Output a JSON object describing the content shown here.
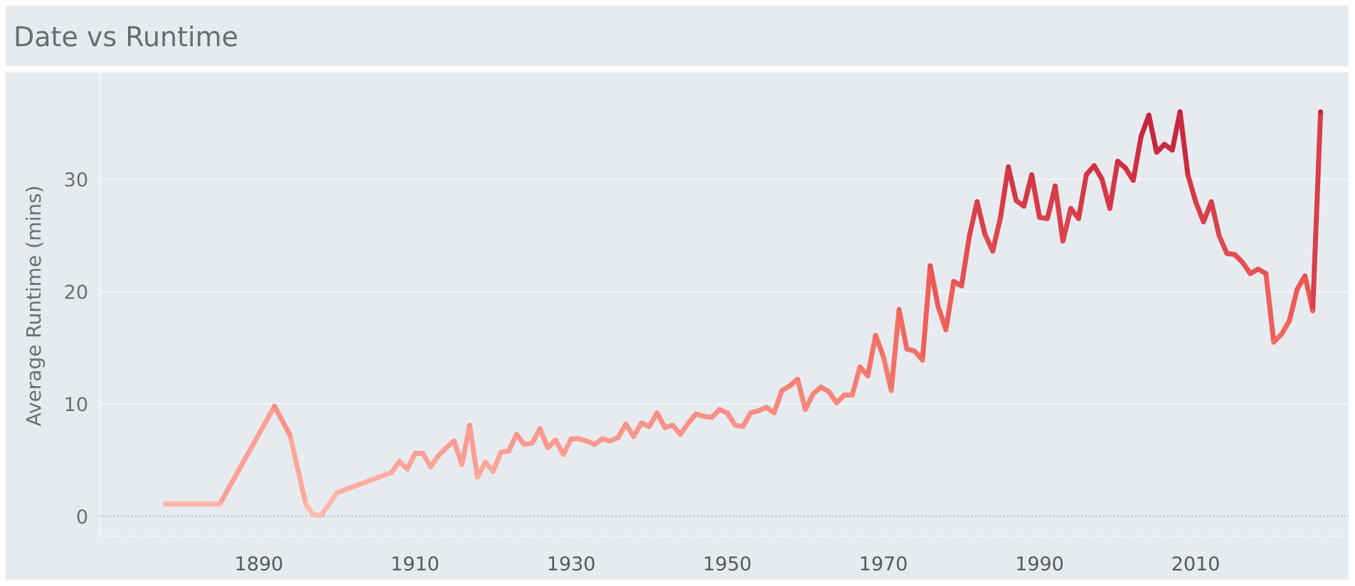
{
  "title": "Date vs Runtime",
  "chart_data": {
    "type": "line",
    "title": "Date vs Runtime",
    "xlabel": "",
    "ylabel": "Average Runtime (mins)",
    "xlim": [
      1870,
      2026
    ],
    "ylim": [
      -2,
      38
    ],
    "x_ticks": [
      1890,
      1910,
      1930,
      1950,
      1970,
      1990,
      2010
    ],
    "y_ticks": [
      0,
      10,
      20,
      30
    ],
    "gridlines": "horizontal",
    "color_scale": {
      "low": "#ffbcaf",
      "mid": "#f0605a",
      "high": "#c31f3a",
      "min_value": 0,
      "max_value": 36
    },
    "x": [
      1878,
      1885,
      1892,
      1894,
      1896,
      1897,
      1898,
      1900,
      1907,
      1908,
      1909,
      1910,
      1911,
      1912,
      1913,
      1914,
      1915,
      1916,
      1917,
      1918,
      1919,
      1920,
      1921,
      1922,
      1923,
      1924,
      1925,
      1926,
      1927,
      1928,
      1929,
      1930,
      1931,
      1932,
      1933,
      1934,
      1935,
      1936,
      1937,
      1938,
      1939,
      1940,
      1941,
      1942,
      1943,
      1944,
      1945,
      1946,
      1947,
      1948,
      1949,
      1950,
      1951,
      1952,
      1953,
      1954,
      1955,
      1956,
      1957,
      1958,
      1959,
      1960,
      1961,
      1962,
      1963,
      1964,
      1965,
      1966,
      1967,
      1968,
      1969,
      1970,
      1971,
      1972,
      1973,
      1974,
      1975,
      1976,
      1977,
      1978,
      1979,
      1980,
      1981,
      1982,
      1983,
      1984,
      1985,
      1986,
      1987,
      1988,
      1989,
      1990,
      1991,
      1992,
      1993,
      1994,
      1995,
      1996,
      1997,
      1998,
      1999,
      2000,
      2001,
      2002,
      2003,
      2004,
      2005,
      2006,
      2007,
      2008,
      2009,
      2010,
      2011,
      2012,
      2013,
      2014,
      2015,
      2016,
      2017,
      2018,
      2019,
      2020,
      2021,
      2022,
      2023,
      2024,
      2025,
      2026
    ],
    "values": [
      1.1,
      1.1,
      9.8,
      7.2,
      1.1,
      0.1,
      0.1,
      2.1,
      3.9,
      4.9,
      4.2,
      5.6,
      5.6,
      4.4,
      5.4,
      6.1,
      6.7,
      4.6,
      8.1,
      3.5,
      4.8,
      4.0,
      5.7,
      5.8,
      7.3,
      6.4,
      6.5,
      7.8,
      6.1,
      6.8,
      5.5,
      6.9,
      6.9,
      6.7,
      6.4,
      6.9,
      6.7,
      7.0,
      8.2,
      7.1,
      8.3,
      8.0,
      9.2,
      7.9,
      8.1,
      7.3,
      8.3,
      9.1,
      8.9,
      8.8,
      9.5,
      9.2,
      8.1,
      8.0,
      9.2,
      9.4,
      9.7,
      9.2,
      11.2,
      11.6,
      12.2,
      9.5,
      10.9,
      11.5,
      11.1,
      10.1,
      10.8,
      10.8,
      13.3,
      12.5,
      16.1,
      14.2,
      11.2,
      18.4,
      14.9,
      14.7,
      13.9,
      22.3,
      18.7,
      16.6,
      20.9,
      20.5,
      24.9,
      28.0,
      25.1,
      23.6,
      26.6,
      31.1,
      28.1,
      27.6,
      30.4,
      26.6,
      26.5,
      29.4,
      24.5,
      27.4,
      26.5,
      30.4,
      31.2,
      30.0,
      27.4,
      31.6,
      31.0,
      29.9,
      33.8,
      35.7,
      32.4,
      33.1,
      32.6,
      36.0,
      30.4,
      28.0,
      26.2,
      28.0,
      25.0,
      23.4,
      23.3,
      22.6,
      21.6,
      22.0,
      21.6,
      15.5,
      16.2,
      17.4,
      20.2,
      21.4,
      18.3,
      36.0
    ]
  }
}
